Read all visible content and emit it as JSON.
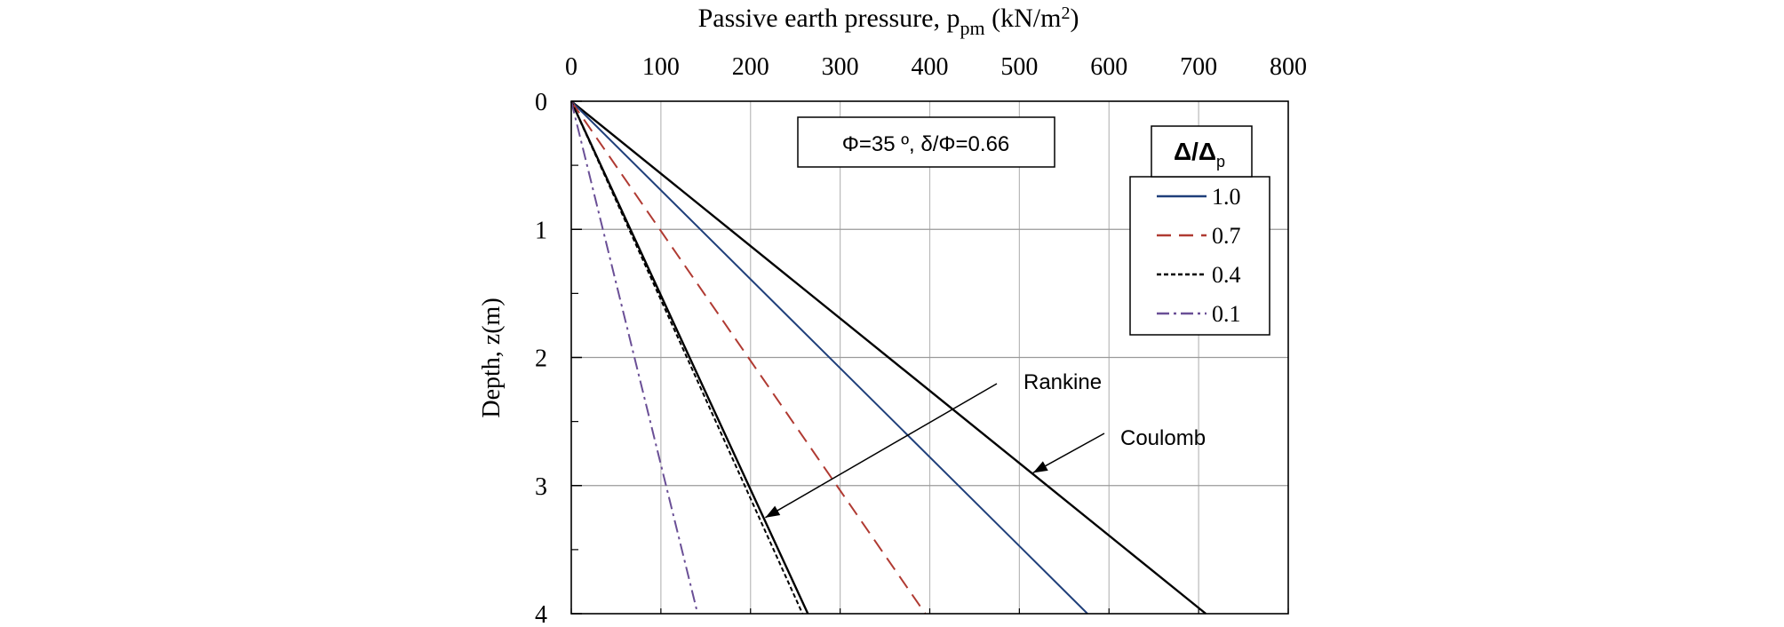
{
  "chart_data": {
    "type": "line",
    "x_label": {
      "text": "Passive earth pressure, p",
      "subscript": "pm",
      "unit_prefix": " (kN/m",
      "unit_power": "2",
      "unit_suffix": ")"
    },
    "ylabel": "Depth, z(m)",
    "xlim": [
      0,
      800
    ],
    "ylim": [
      0,
      4
    ],
    "y_inverted": true,
    "x_axis_position": "top",
    "x_ticks": [
      0,
      100,
      200,
      300,
      400,
      500,
      600,
      700,
      800
    ],
    "y_ticks": [
      0,
      1,
      2,
      3,
      4
    ],
    "grid": true,
    "parameters_box": "Φ=35 º, δ/Φ=0.66",
    "legend": {
      "title_main": "Δ/Δ",
      "title_sub": "p",
      "placement": "top-right"
    },
    "series": [
      {
        "name": "1.0",
        "style": "solid",
        "color": "#1f3f7a",
        "x": [
          0,
          576
        ],
        "y": [
          0,
          4
        ]
      },
      {
        "name": "0.7",
        "style": "dashed",
        "color": "#b03a32",
        "x": [
          0,
          395
        ],
        "y": [
          0,
          4
        ]
      },
      {
        "name": "0.4",
        "style": "dotted",
        "color": "#000000",
        "x": [
          0,
          258
        ],
        "y": [
          0,
          4
        ]
      },
      {
        "name": "0.1",
        "style": "dashdot",
        "color": "#6a4f96",
        "x": [
          0,
          141
        ],
        "y": [
          0,
          4
        ]
      }
    ],
    "reference_lines": [
      {
        "name": "Rankine",
        "color": "#000000",
        "x": [
          0,
          264
        ],
        "y": [
          0,
          4
        ]
      },
      {
        "name": "Coulomb",
        "color": "#000000",
        "x": [
          0,
          708
        ],
        "y": [
          0,
          4
        ]
      }
    ],
    "annotations": [
      {
        "text": "Rankine",
        "points_to_line": "Rankine"
      },
      {
        "text": "Coulomb",
        "points_to_line": "Coulomb"
      }
    ]
  }
}
